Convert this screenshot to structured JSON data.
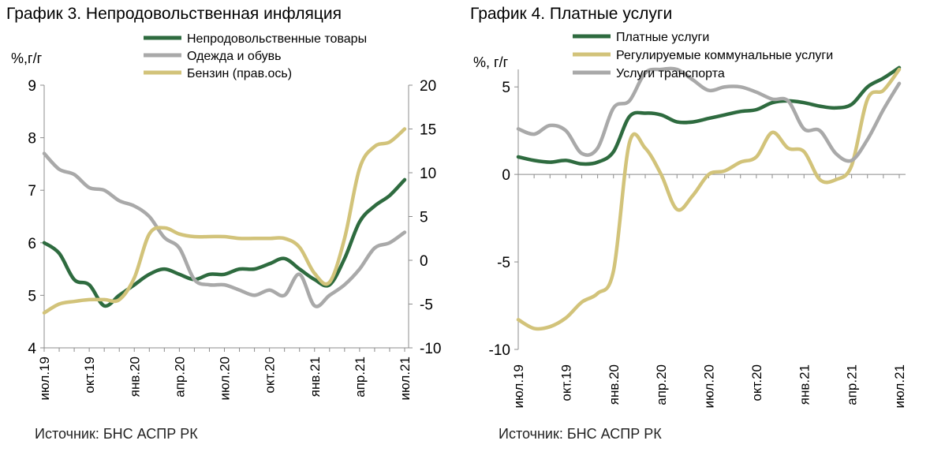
{
  "source": "Источник: БНС АСПР РК",
  "charts": [
    {
      "title": "График 3. Непродовольственная инфляция",
      "ylabel": "%,г/г",
      "chart_data": {
        "type": "line",
        "title": "График 3. Непродовольственная инфляция",
        "ylabel": "%,г/г",
        "ylim": [
          4,
          9
        ],
        "yticks": [
          4,
          5,
          6,
          7,
          8,
          9
        ],
        "y2lim": [
          -10,
          20
        ],
        "y2ticks": [
          -10,
          -5,
          0,
          5,
          10,
          15,
          20
        ],
        "grid": false,
        "legend_position": "top",
        "x": [
          "июл.19",
          "авг.19",
          "сен.19",
          "окт.19",
          "ноя.19",
          "дек.19",
          "янв.20",
          "фев.20",
          "мар.20",
          "апр.20",
          "май.20",
          "июн.20",
          "июл.20",
          "авг.20",
          "сен.20",
          "окт.20",
          "ноя.20",
          "дек.20",
          "янв.21",
          "фев.21",
          "мар.21",
          "апр.21",
          "май.21",
          "июн.21",
          "июл.21"
        ],
        "xtick_labels": [
          "июл.19",
          "окт.19",
          "янв.20",
          "апр.20",
          "июл.20",
          "окт.20",
          "янв.21",
          "апр.21",
          "июл.21"
        ],
        "series": [
          {
            "name": "Непродовольственные товары",
            "axis": "left",
            "color": "#2e6b3f",
            "values": [
              6.0,
              5.8,
              5.3,
              5.2,
              4.8,
              5.0,
              5.2,
              5.4,
              5.5,
              5.4,
              5.3,
              5.4,
              5.4,
              5.5,
              5.5,
              5.6,
              5.7,
              5.5,
              5.3,
              5.2,
              5.7,
              6.4,
              6.7,
              6.9,
              7.2
            ]
          },
          {
            "name": "Одежда и обувь",
            "axis": "left",
            "color": "#a9a9a9",
            "values": [
              7.7,
              7.4,
              7.3,
              7.05,
              7.0,
              6.8,
              6.7,
              6.5,
              6.1,
              5.9,
              5.3,
              5.2,
              5.2,
              5.1,
              5.0,
              5.1,
              5.0,
              5.4,
              4.8,
              5.0,
              5.2,
              5.5,
              5.9,
              6.0,
              6.2
            ]
          },
          {
            "name": "Бензин (прав.ось)",
            "axis": "right",
            "color": "#d2c37a",
            "values": [
              -6.0,
              -5.0,
              -4.7,
              -4.5,
              -4.5,
              -4.5,
              -2.0,
              3.0,
              3.7,
              3.0,
              2.7,
              2.7,
              2.7,
              2.5,
              2.5,
              2.5,
              2.5,
              1.5,
              -1.5,
              -2.5,
              2.5,
              10.5,
              13.0,
              13.5,
              15.0
            ]
          }
        ]
      }
    },
    {
      "title": "График 4. Платные услуги",
      "ylabel": "%, г/г",
      "chart_data": {
        "type": "line",
        "title": "График 4. Платные услуги",
        "ylabel": "%, г/г",
        "ylim": [
          -10,
          6
        ],
        "yticks": [
          -10,
          -5,
          0,
          5
        ],
        "grid": false,
        "legend_position": "top",
        "x": [
          "июл.19",
          "авг.19",
          "сен.19",
          "окт.19",
          "ноя.19",
          "дек.19",
          "янв.20",
          "фев.20",
          "мар.20",
          "апр.20",
          "май.20",
          "июн.20",
          "июл.20",
          "авг.20",
          "сен.20",
          "окт.20",
          "ноя.20",
          "дек.20",
          "янв.21",
          "фев.21",
          "мар.21",
          "апр.21",
          "май.21",
          "июн.21",
          "июл.21"
        ],
        "xtick_labels": [
          "июл.19",
          "окт.19",
          "янв.20",
          "апр.20",
          "июл.20",
          "окт.20",
          "янв.21",
          "апр.21",
          "июл.21"
        ],
        "series": [
          {
            "name": "Платные услуги",
            "color": "#2e6b3f",
            "values": [
              1.0,
              0.8,
              0.7,
              0.8,
              0.6,
              0.7,
              1.3,
              3.3,
              3.5,
              3.4,
              3.0,
              3.0,
              3.2,
              3.4,
              3.6,
              3.7,
              4.1,
              4.2,
              4.1,
              3.9,
              3.8,
              4.0,
              5.0,
              5.5,
              6.1
            ]
          },
          {
            "name": "Регулируемые коммунальные услуги",
            "color": "#d2c37a",
            "values": [
              -8.3,
              -8.8,
              -8.7,
              -8.2,
              -7.3,
              -6.8,
              -5.5,
              1.8,
              1.5,
              0.0,
              -2.0,
              -1.2,
              0.0,
              0.2,
              0.7,
              1.0,
              2.4,
              1.5,
              1.3,
              -0.3,
              -0.3,
              0.5,
              4.3,
              4.8,
              6.0
            ]
          },
          {
            "name": "Услуги транспорта",
            "color": "#a9a9a9",
            "values": [
              2.6,
              2.3,
              2.8,
              2.5,
              1.2,
              1.5,
              3.8,
              4.2,
              5.8,
              6.0,
              6.0,
              5.4,
              4.8,
              5.0,
              5.0,
              4.7,
              4.3,
              4.2,
              2.6,
              2.5,
              1.2,
              0.8,
              2.0,
              3.7,
              5.2
            ]
          }
        ]
      }
    }
  ]
}
